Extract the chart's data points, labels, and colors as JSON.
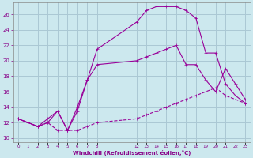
{
  "xlabel": "Windchill (Refroidissement éolien,°C)",
  "bg_color": "#cce8ee",
  "grid_color": "#aac8d4",
  "line_color": "#990099",
  "line1_x": [
    0,
    1,
    2,
    3,
    4,
    5,
    6,
    7,
    8,
    12,
    13,
    14,
    15,
    16,
    17,
    18,
    19,
    20,
    21,
    22,
    23
  ],
  "line1_y": [
    12.5,
    12.0,
    11.5,
    12.0,
    11.0,
    11.0,
    11.0,
    11.5,
    12.0,
    12.5,
    13.0,
    13.5,
    14.0,
    14.5,
    15.0,
    15.5,
    16.0,
    16.5,
    15.5,
    15.0,
    14.5
  ],
  "line2_x": [
    0,
    1,
    2,
    3,
    4,
    5,
    6,
    7,
    8,
    12,
    13,
    14,
    15,
    16,
    17,
    18,
    19,
    20,
    21,
    22,
    23
  ],
  "line2_y": [
    12.5,
    12.0,
    11.5,
    12.0,
    13.5,
    11.0,
    14.0,
    17.5,
    21.5,
    25.0,
    26.5,
    27.0,
    27.0,
    27.0,
    26.5,
    25.5,
    21.0,
    21.0,
    17.0,
    15.5,
    14.5
  ],
  "line3_x": [
    0,
    2,
    3,
    4,
    5,
    6,
    7,
    8,
    12,
    13,
    14,
    15,
    16,
    17,
    18,
    19,
    20,
    21,
    22,
    23
  ],
  "line3_y": [
    12.5,
    11.5,
    12.5,
    13.5,
    11.0,
    13.5,
    17.5,
    19.5,
    20.0,
    20.5,
    21.0,
    21.5,
    22.0,
    19.5,
    19.5,
    17.5,
    16.0,
    19.0,
    17.0,
    15.0
  ],
  "yticks": [
    10,
    12,
    14,
    16,
    18,
    20,
    22,
    24,
    26
  ],
  "xticks": [
    0,
    1,
    2,
    3,
    4,
    5,
    6,
    7,
    8,
    12,
    13,
    14,
    15,
    16,
    17,
    18,
    19,
    20,
    21,
    22,
    23
  ],
  "ymin": 9.5,
  "ymax": 27.5,
  "xmin": -0.5,
  "xmax": 23.5
}
